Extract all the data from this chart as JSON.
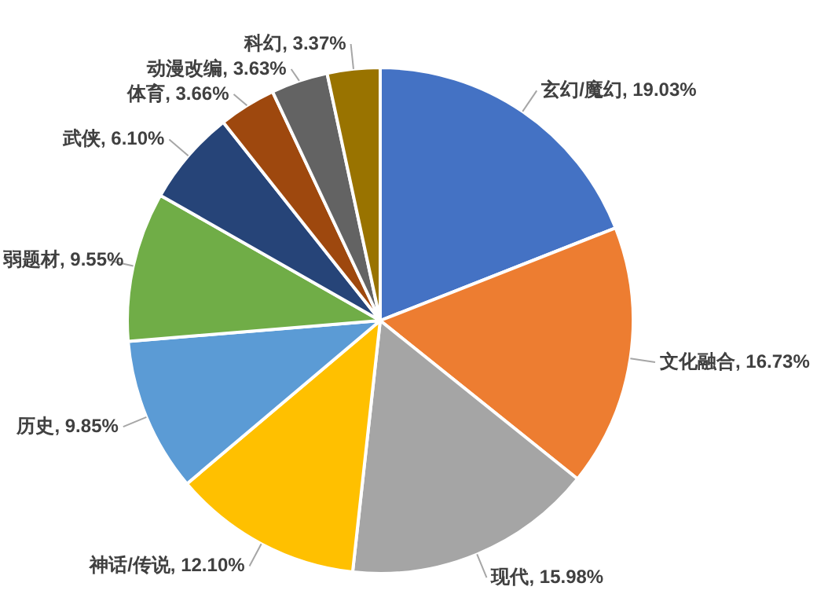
{
  "chart_data": {
    "type": "pie",
    "categories": [
      "玄幻/魔幻",
      "文化融合",
      "现代",
      "神话/传说",
      "历史",
      "弱题材",
      "武侠",
      "体育",
      "动漫改编",
      "科幻"
    ],
    "values": [
      19.03,
      16.73,
      15.98,
      12.1,
      9.85,
      9.55,
      6.1,
      3.66,
      3.63,
      3.37
    ],
    "value_labels": [
      "19.03%",
      "16.73%",
      "15.98%",
      "12.10%",
      "9.85%",
      "9.55%",
      "6.10%",
      "3.66%",
      "3.63%",
      "3.37%"
    ],
    "colors": [
      "#4472c4",
      "#ed7d31",
      "#a5a5a5",
      "#ffc000",
      "#5b9bd5",
      "#70ad47",
      "#264478",
      "#9e480e",
      "#636363",
      "#997300"
    ],
    "legend": false
  }
}
